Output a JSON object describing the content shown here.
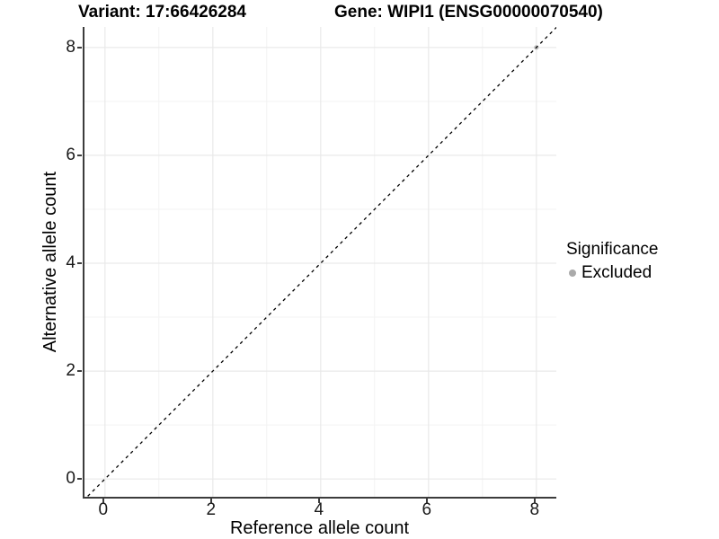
{
  "chart_data": {
    "type": "scatter",
    "title_left": "Variant: 17:66426284",
    "title_right": "Gene: WIPI1 (ENSG00000070540)",
    "xlabel": "Reference allele count",
    "ylabel": "Alternative allele count",
    "xlim": [
      -0.38,
      8.37
    ],
    "ylim": [
      -0.33,
      8.38
    ],
    "x_ticks": [
      0,
      2,
      4,
      6,
      8
    ],
    "y_ticks": [
      0,
      2,
      4,
      6,
      8
    ],
    "x_minor_ticks": [
      1,
      3,
      5,
      7
    ],
    "y_minor_ticks": [
      1,
      3,
      5,
      7
    ],
    "grid": true,
    "major_grid_color": "#e9e9e9",
    "minor_grid_color": "#f3f3f3",
    "points": [
      {
        "x": 8,
        "y": 8,
        "series": "Excluded",
        "color": "#bdbdbd",
        "radius": 2.6
      }
    ],
    "abline": {
      "slope": 1,
      "intercept": 0,
      "style": "dashed",
      "color": "#000000",
      "description": "y = x identity diagonal, dashed"
    },
    "legend": {
      "title": "Significance",
      "position": "right",
      "items": [
        {
          "label": "Excluded",
          "color": "#aaaaaa"
        }
      ]
    }
  }
}
